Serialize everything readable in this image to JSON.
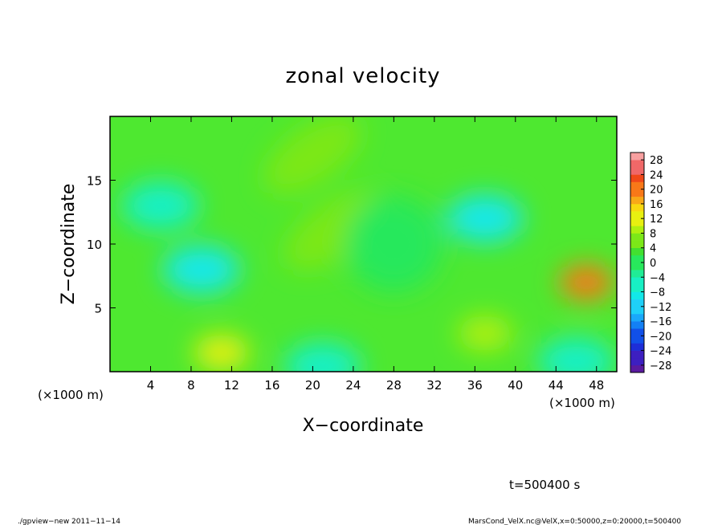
{
  "chart_data": {
    "type": "heatmap",
    "title": "zonal velocity",
    "xlabel": "X−coordinate",
    "ylabel": "Z−coordinate",
    "x_unit_left": "(×1000 m)",
    "x_unit_right": "(×1000 m)",
    "xlim": [
      0,
      50
    ],
    "ylim": [
      0,
      20
    ],
    "x_ticks": [
      4,
      8,
      12,
      16,
      20,
      24,
      28,
      32,
      36,
      40,
      44,
      48
    ],
    "y_ticks": [
      5,
      10,
      15
    ],
    "colorbar": {
      "levels": [
        -30,
        -28,
        -26,
        -24,
        -22,
        -20,
        -18,
        -16,
        -14,
        -12,
        -10,
        -8,
        -6,
        -4,
        -2,
        0,
        2,
        4,
        6,
        8,
        10,
        12,
        14,
        16,
        18,
        20,
        22,
        24,
        26,
        28,
        30
      ],
      "labels": [
        "28",
        "24",
        "20",
        "16",
        "12",
        "8",
        "4",
        "0",
        "−4",
        "−8",
        "−12",
        "−16",
        "−20",
        "−24",
        "−28"
      ],
      "label_values": [
        28,
        24,
        20,
        16,
        12,
        8,
        4,
        0,
        -4,
        -8,
        -12,
        -16,
        -20,
        -24,
        -28
      ]
    },
    "field_features": [
      {
        "x": 22,
        "z": 11,
        "value": 7,
        "kind": "positive-ridge"
      },
      {
        "x": 20,
        "z": 17,
        "value": 7,
        "kind": "positive-ridge"
      },
      {
        "x": 11,
        "z": 1.5,
        "value": 11,
        "kind": "positive-max"
      },
      {
        "x": 47,
        "z": 7,
        "value": 18,
        "kind": "positive-max"
      },
      {
        "x": 37,
        "z": 3,
        "value": 8,
        "kind": "positive-max"
      },
      {
        "x": 9,
        "z": 8,
        "value": -10,
        "kind": "negative-min"
      },
      {
        "x": 37,
        "z": 12,
        "value": -10,
        "kind": "negative-min"
      },
      {
        "x": 5,
        "z": 13,
        "value": -6,
        "kind": "negative-min"
      },
      {
        "x": 21,
        "z": 0.4,
        "value": -6,
        "kind": "negative-min"
      },
      {
        "x": 46,
        "z": 0.8,
        "value": -6,
        "kind": "negative-min"
      },
      {
        "x": 28,
        "z": 10,
        "value": 1,
        "kind": "background"
      }
    ]
  },
  "annotations": {
    "time": "t=500400 s",
    "footer_left": "./gpview−new  2011−11−14",
    "footer_right": "MarsCond_VelX.nc@VelX,x=0:50000,z=0:20000,t=500400"
  },
  "colors": {
    "palette": [
      "#5a1aa0",
      "#3d1fc0",
      "#1d2ed8",
      "#1150e8",
      "#1380f4",
      "#1aa8fa",
      "#1fd0f8",
      "#12e8e8",
      "#18f0c4",
      "#20ec96",
      "#28e85c",
      "#42e030",
      "#7ce818",
      "#b0f010",
      "#e8f010",
      "#f8d810",
      "#f8a818",
      "#f87818",
      "#f04818",
      "#f06868",
      "#f8a0a0"
    ]
  }
}
